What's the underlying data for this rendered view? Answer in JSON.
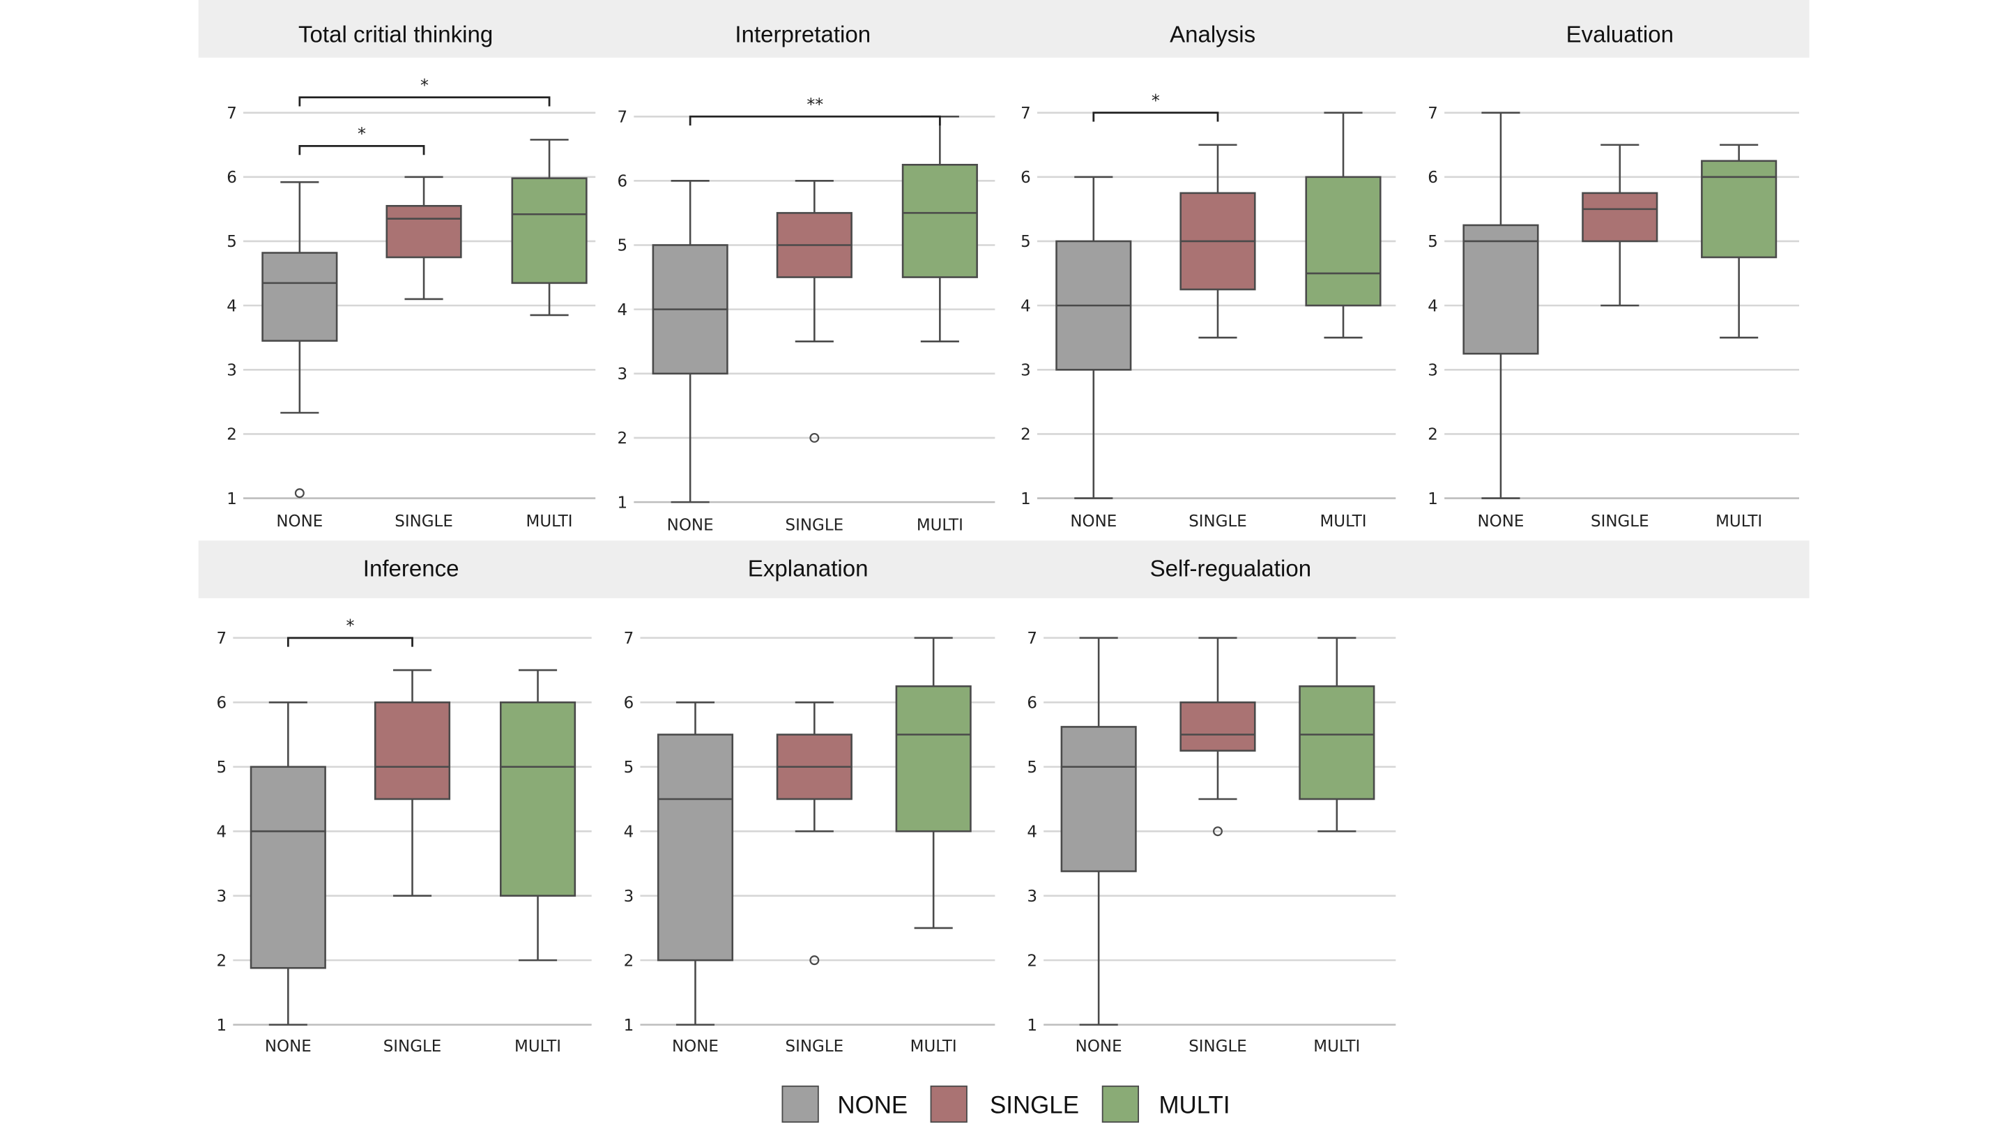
{
  "chart_data": {
    "type": "boxplot",
    "categories": [
      "NONE",
      "SINGLE",
      "MULTI"
    ],
    "colors": {
      "NONE": "#a0a0a0",
      "SINGLE": "#aa7373",
      "MULTI": "#8aab76"
    },
    "ylim": [
      1,
      7
    ],
    "yticks": [
      "1",
      "2",
      "3",
      "4",
      "5",
      "6",
      "7"
    ],
    "grid": true,
    "legend": {
      "placement": "bottom-center",
      "entries": [
        "NONE",
        "SINGLE",
        "MULTI"
      ]
    },
    "panels": [
      {
        "title": "Total critial thinking",
        "boxes": {
          "NONE": {
            "whislo": 2.33,
            "q1": 3.45,
            "med": 4.35,
            "q3": 4.82,
            "whishi": 5.92,
            "fliers": [
              1.08
            ]
          },
          "SINGLE": {
            "whislo": 4.1,
            "q1": 4.75,
            "med": 5.35,
            "q3": 5.55,
            "whishi": 6.0,
            "fliers": []
          },
          "MULTI": {
            "whislo": 3.85,
            "q1": 4.35,
            "med": 5.42,
            "q3": 5.98,
            "whishi": 6.58,
            "fliers": []
          }
        },
        "significance": [
          {
            "from": "NONE",
            "to": "SINGLE",
            "label": "*"
          },
          {
            "from": "NONE",
            "to": "MULTI",
            "label": "*"
          }
        ]
      },
      {
        "title": "Interpretation",
        "boxes": {
          "NONE": {
            "whislo": 1.0,
            "q1": 3.0,
            "med": 4.0,
            "q3": 5.0,
            "whishi": 6.0,
            "fliers": []
          },
          "SINGLE": {
            "whislo": 3.5,
            "q1": 4.5,
            "med": 5.0,
            "q3": 5.5,
            "whishi": 6.0,
            "fliers": [
              2.0
            ]
          },
          "MULTI": {
            "whislo": 3.5,
            "q1": 4.5,
            "med": 5.5,
            "q3": 6.25,
            "whishi": 7.0,
            "fliers": []
          }
        },
        "significance": [
          {
            "from": "NONE",
            "to": "MULTI",
            "label": "**"
          }
        ]
      },
      {
        "title": "Analysis",
        "boxes": {
          "NONE": {
            "whislo": 1.0,
            "q1": 3.0,
            "med": 4.0,
            "q3": 5.0,
            "whishi": 6.0,
            "fliers": []
          },
          "SINGLE": {
            "whislo": 3.5,
            "q1": 4.25,
            "med": 5.0,
            "q3": 5.75,
            "whishi": 6.5,
            "fliers": []
          },
          "MULTI": {
            "whislo": 3.5,
            "q1": 4.0,
            "med": 4.5,
            "q3": 6.0,
            "whishi": 7.0,
            "fliers": []
          }
        },
        "significance": [
          {
            "from": "NONE",
            "to": "SINGLE",
            "label": "*"
          }
        ]
      },
      {
        "title": "Evaluation",
        "boxes": {
          "NONE": {
            "whislo": 1.0,
            "q1": 3.25,
            "med": 5.0,
            "q3": 5.25,
            "whishi": 7.0,
            "fliers": []
          },
          "SINGLE": {
            "whislo": 4.0,
            "q1": 5.0,
            "med": 5.5,
            "q3": 5.75,
            "whishi": 6.5,
            "fliers": []
          },
          "MULTI": {
            "whislo": 3.5,
            "q1": 4.75,
            "med": 6.0,
            "q3": 6.25,
            "whishi": 6.5,
            "fliers": []
          }
        },
        "significance": []
      },
      {
        "title": "Inference",
        "boxes": {
          "NONE": {
            "whislo": 1.0,
            "q1": 1.88,
            "med": 4.0,
            "q3": 5.0,
            "whishi": 6.0,
            "fliers": []
          },
          "SINGLE": {
            "whislo": 3.0,
            "q1": 4.5,
            "med": 5.0,
            "q3": 6.0,
            "whishi": 6.5,
            "fliers": []
          },
          "MULTI": {
            "whislo": 2.0,
            "q1": 3.0,
            "med": 5.0,
            "q3": 6.0,
            "whishi": 6.5,
            "fliers": []
          }
        },
        "significance": [
          {
            "from": "NONE",
            "to": "SINGLE",
            "label": "*"
          }
        ]
      },
      {
        "title": "Explanation",
        "boxes": {
          "NONE": {
            "whislo": 1.0,
            "q1": 2.0,
            "med": 4.5,
            "q3": 5.5,
            "whishi": 6.0,
            "fliers": []
          },
          "SINGLE": {
            "whislo": 4.0,
            "q1": 4.5,
            "med": 5.0,
            "q3": 5.5,
            "whishi": 6.0,
            "fliers": [
              2.0
            ]
          },
          "MULTI": {
            "whislo": 2.5,
            "q1": 4.0,
            "med": 5.5,
            "q3": 6.25,
            "whishi": 7.0,
            "fliers": []
          }
        },
        "significance": []
      },
      {
        "title": "Self-regualation",
        "boxes": {
          "NONE": {
            "whislo": 1.0,
            "q1": 3.38,
            "med": 5.0,
            "q3": 5.62,
            "whishi": 7.0,
            "fliers": []
          },
          "SINGLE": {
            "whislo": 4.5,
            "q1": 5.25,
            "med": 5.5,
            "q3": 6.0,
            "whishi": 7.0,
            "fliers": [
              4.0
            ]
          },
          "MULTI": {
            "whislo": 4.0,
            "q1": 4.5,
            "med": 5.5,
            "q3": 6.25,
            "whishi": 7.0,
            "fliers": []
          }
        },
        "significance": []
      }
    ]
  }
}
